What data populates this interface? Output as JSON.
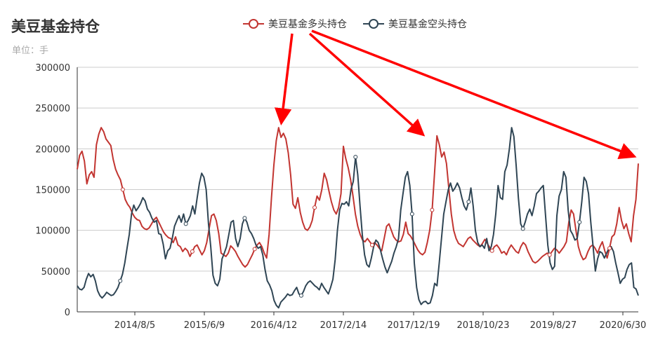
{
  "chart_data": {
    "type": "line",
    "title": "美豆基金持仓",
    "subtitle": "单位：手",
    "ylim": [
      0,
      300000
    ],
    "yticks": [
      0,
      50000,
      100000,
      150000,
      200000,
      250000,
      300000
    ],
    "yticklabels": [
      "0",
      "50000",
      "100000",
      "150000",
      "200000",
      "250000",
      "300000"
    ],
    "xticklabels": [
      "2014/8/5",
      "2015/6/9",
      "2016/4/12",
      "2017/2/14",
      "2017/12/19",
      "2018/10/23",
      "2019/8/27",
      "2020/6/30"
    ],
    "grid": true,
    "legend_position": "top-center",
    "series": [
      {
        "name": "美豆基金多头持仓",
        "color": "#c23531",
        "values": [
          175000,
          192000,
          197000,
          185000,
          157000,
          168000,
          172000,
          165000,
          205000,
          218000,
          226000,
          221000,
          212000,
          208000,
          204000,
          187000,
          175000,
          168000,
          162000,
          150000,
          138000,
          132000,
          128000,
          121000,
          116000,
          113000,
          112000,
          105000,
          102000,
          101000,
          103000,
          108000,
          113000,
          116000,
          110000,
          104000,
          98000,
          94000,
          91000,
          90000,
          85000,
          92000,
          82000,
          80000,
          74000,
          78000,
          75000,
          68000,
          74000,
          80000,
          82000,
          76000,
          70000,
          75000,
          85000,
          102000,
          118000,
          120000,
          112000,
          96000,
          72000,
          70000,
          68000,
          72000,
          81000,
          78000,
          74000,
          68000,
          63000,
          58000,
          55000,
          58000,
          64000,
          70000,
          77000,
          82000,
          85000,
          80000,
          72000,
          66000,
          95000,
          140000,
          180000,
          210000,
          226000,
          214000,
          219000,
          212000,
          195000,
          168000,
          132000,
          127000,
          140000,
          122000,
          110000,
          102000,
          100000,
          104000,
          112000,
          128000,
          142000,
          137000,
          150000,
          170000,
          162000,
          148000,
          135000,
          125000,
          120000,
          128000,
          145000,
          203000,
          188000,
          177000,
          162000,
          142000,
          120000,
          105000,
          95000,
          88000,
          86000,
          90000,
          86000,
          82000,
          85000,
          82000,
          78000,
          75000,
          90000,
          105000,
          108000,
          100000,
          92000,
          88000,
          86000,
          87000,
          95000,
          110000,
          96000,
          93000,
          88000,
          82000,
          76000,
          72000,
          70000,
          73000,
          85000,
          100000,
          125000,
          170000,
          216000,
          205000,
          190000,
          196000,
          182000,
          150000,
          120000,
          100000,
          90000,
          84000,
          82000,
          80000,
          85000,
          90000,
          92000,
          88000,
          85000,
          82000,
          80000,
          84000,
          89000,
          84000,
          79000,
          75000,
          80000,
          82000,
          78000,
          72000,
          74000,
          70000,
          77000,
          82000,
          78000,
          74000,
          72000,
          80000,
          85000,
          82000,
          74000,
          68000,
          62000,
          60000,
          62000,
          65000,
          68000,
          70000,
          72000,
          70000,
          74000,
          78000,
          76000,
          72000,
          76000,
          80000,
          86000,
          110000,
          125000,
          120000,
          100000,
          80000,
          70000,
          64000,
          66000,
          74000,
          80000,
          82000,
          78000,
          72000,
          80000,
          86000,
          75000,
          66000,
          78000,
          92000,
          95000,
          108000,
          128000,
          112000,
          102000,
          108000,
          96000,
          86000,
          118000,
          138000,
          182000
        ]
      },
      {
        "name": "美豆基金空头持仓",
        "color": "#2f4554",
        "values": [
          32000,
          28000,
          27000,
          30000,
          40000,
          47000,
          43000,
          46000,
          38000,
          26000,
          20000,
          17000,
          20000,
          24000,
          22000,
          20000,
          21000,
          25000,
          30000,
          38000,
          46000,
          60000,
          78000,
          95000,
          120000,
          131000,
          124000,
          128000,
          133000,
          140000,
          136000,
          126000,
          122000,
          115000,
          110000,
          112000,
          96000,
          95000,
          83000,
          65000,
          75000,
          78000,
          90000,
          105000,
          112000,
          118000,
          110000,
          120000,
          108000,
          112000,
          118000,
          130000,
          120000,
          140000,
          158000,
          170000,
          165000,
          150000,
          108000,
          80000,
          45000,
          35000,
          32000,
          40000,
          65000,
          72000,
          80000,
          95000,
          110000,
          112000,
          90000,
          80000,
          90000,
          108000,
          115000,
          110000,
          100000,
          96000,
          90000,
          82000,
          78000,
          80000,
          70000,
          52000,
          38000,
          33000,
          26000,
          14000,
          8000,
          5000,
          12000,
          15000,
          18000,
          22000,
          20000,
          21000,
          26000,
          30000,
          22000,
          20000,
          25000,
          32000,
          36000,
          38000,
          35000,
          32000,
          30000,
          27000,
          35000,
          30000,
          26000,
          22000,
          30000,
          40000,
          64000,
          100000,
          125000,
          133000,
          132000,
          135000,
          130000,
          150000,
          160000,
          190000,
          168000,
          130000,
          95000,
          70000,
          58000,
          55000,
          66000,
          80000,
          88000,
          85000,
          76000,
          65000,
          55000,
          48000,
          55000,
          62000,
          72000,
          80000,
          90000,
          125000,
          145000,
          165000,
          172000,
          155000,
          120000,
          60000,
          30000,
          15000,
          9000,
          12000,
          13000,
          10000,
          11000,
          20000,
          35000,
          32000,
          60000,
          90000,
          120000,
          135000,
          150000,
          158000,
          148000,
          152000,
          158000,
          152000,
          140000,
          130000,
          125000,
          135000,
          152000,
          130000,
          100000,
          85000,
          80000,
          82000,
          78000,
          90000,
          75000,
          80000,
          95000,
          120000,
          155000,
          140000,
          138000,
          172000,
          180000,
          200000,
          226000,
          215000,
          180000,
          140000,
          108000,
          102000,
          110000,
          120000,
          126000,
          118000,
          130000,
          145000,
          148000,
          152000,
          155000,
          118000,
          82000,
          60000,
          52000,
          56000,
          118000,
          142000,
          150000,
          172000,
          165000,
          125000,
          100000,
          95000,
          88000,
          90000,
          110000,
          135000,
          165000,
          160000,
          145000,
          110000,
          80000,
          50000,
          65000,
          74000,
          72000,
          66000,
          72000,
          78000,
          80000,
          74000,
          60000,
          48000,
          35000,
          40000,
          42000,
          52000,
          58000,
          60000,
          30000,
          28000,
          20000
        ]
      }
    ]
  }
}
